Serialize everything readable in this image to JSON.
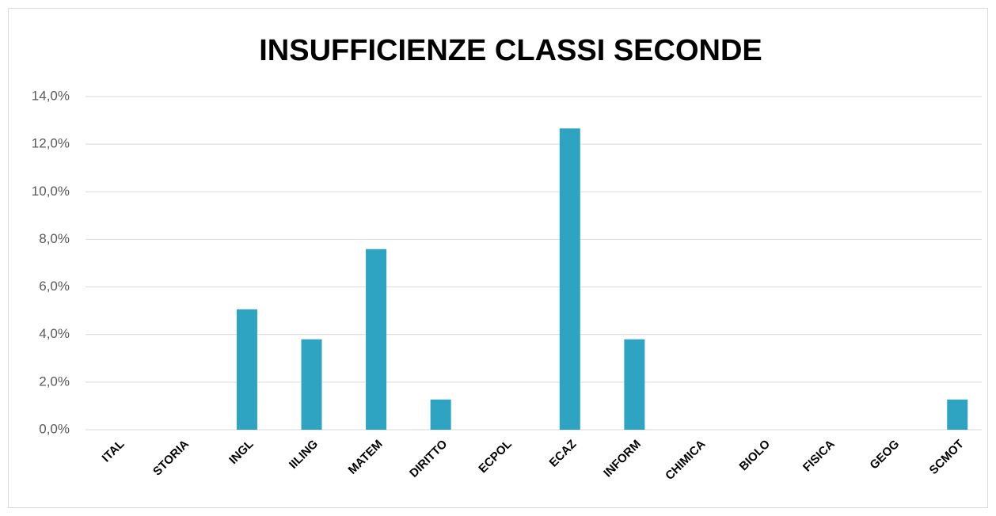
{
  "chart_data": {
    "type": "bar",
    "title": "INSUFFICIENZE CLASSI SECONDE",
    "categories": [
      "ITAL",
      "STORIA",
      "INGL",
      "IILING",
      "MATEM",
      "DIRITTO",
      "ECPOL",
      "ECAZ",
      "INFORM",
      "CHIMICA",
      "BIOLO",
      "FISICA",
      "GEOG",
      "SCMOT"
    ],
    "values": [
      0,
      0,
      5.06,
      3.8,
      7.59,
      1.27,
      0,
      12.66,
      3.8,
      0,
      0,
      0,
      0,
      1.27
    ],
    "color": "#2ea4c2",
    "ylim": [
      0,
      14
    ],
    "yticks": [
      {
        "value": 0,
        "label": "0,0%"
      },
      {
        "value": 2,
        "label": "2,0%"
      },
      {
        "value": 4,
        "label": "4,0%"
      },
      {
        "value": 6,
        "label": "6,0%"
      },
      {
        "value": 8,
        "label": "8,0%"
      },
      {
        "value": 10,
        "label": "10,0%"
      },
      {
        "value": 12,
        "label": "12,0%"
      },
      {
        "value": 14,
        "label": "14,0%"
      }
    ],
    "grid": true
  }
}
